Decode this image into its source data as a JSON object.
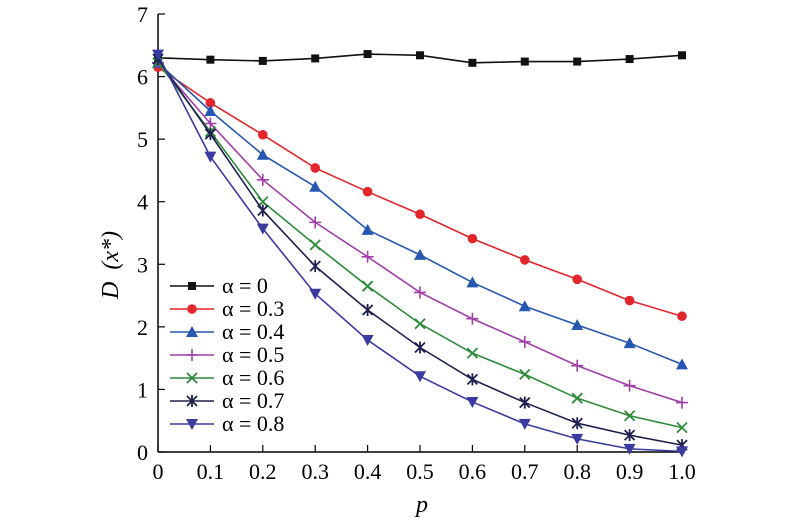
{
  "chart_data": {
    "type": "line",
    "title": "",
    "xlabel": "p",
    "ylabel_main": "D",
    "ylabel_paren": "(x*)",
    "xlim": [
      0,
      1.0
    ],
    "ylim": [
      0,
      7
    ],
    "x": [
      0,
      0.1,
      0.2,
      0.3,
      0.4,
      0.5,
      0.6,
      0.7,
      0.8,
      0.9,
      1.0
    ],
    "xticks": [
      "0",
      "0.1",
      "0.2",
      "0.3",
      "0.4",
      "0.5",
      "0.6",
      "0.7",
      "0.8",
      "0.9",
      "1.0"
    ],
    "yticks": [
      "0",
      "1",
      "2",
      "3",
      "4",
      "5",
      "6",
      "7"
    ],
    "grid": false,
    "legend_position": "bottom-left",
    "series": [
      {
        "name": "α = 0",
        "color": "#111111",
        "marker": "square",
        "values": [
          6.3,
          6.27,
          6.25,
          6.29,
          6.36,
          6.34,
          6.22,
          6.24,
          6.24,
          6.28,
          6.34
        ]
      },
      {
        "name": "α = 0.3",
        "color": "#e3262c",
        "marker": "circle",
        "values": [
          6.15,
          5.58,
          5.07,
          4.54,
          4.16,
          3.8,
          3.41,
          3.07,
          2.76,
          2.42,
          2.17
        ]
      },
      {
        "name": "α = 0.4",
        "color": "#2757b0",
        "marker": "triangle-up",
        "values": [
          6.22,
          5.45,
          4.75,
          4.24,
          3.55,
          3.15,
          2.71,
          2.33,
          2.03,
          1.74,
          1.4
        ]
      },
      {
        "name": "α = 0.5",
        "color": "#a03fa8",
        "marker": "plus",
        "values": [
          6.22,
          5.25,
          4.35,
          3.67,
          3.12,
          2.55,
          2.13,
          1.76,
          1.38,
          1.06,
          0.79
        ]
      },
      {
        "name": "α = 0.6",
        "color": "#2e8b3a",
        "marker": "x",
        "values": [
          6.22,
          5.12,
          4.0,
          3.31,
          2.65,
          2.05,
          1.58,
          1.24,
          0.86,
          0.58,
          0.39
        ]
      },
      {
        "name": "α = 0.7",
        "color": "#1e2050",
        "marker": "asterisk",
        "values": [
          6.28,
          5.08,
          3.86,
          2.97,
          2.27,
          1.67,
          1.16,
          0.79,
          0.46,
          0.27,
          0.11
        ]
      },
      {
        "name": "α = 0.8",
        "color": "#3b3aa0",
        "marker": "triangle-down",
        "values": [
          6.35,
          4.72,
          3.57,
          2.53,
          1.79,
          1.21,
          0.8,
          0.45,
          0.21,
          0.05,
          0.01
        ]
      }
    ]
  }
}
